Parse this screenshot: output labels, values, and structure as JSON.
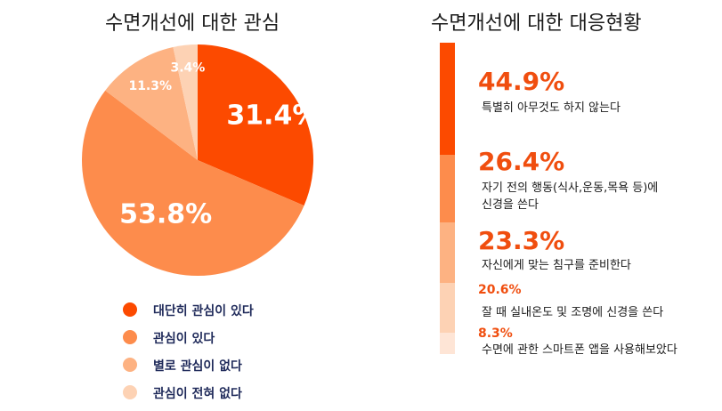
{
  "left_title": "수면개선에 대한 관심",
  "right_title": "수면개선에 대한 대응현황",
  "colors": {
    "c1": "#fc4a00",
    "c2": "#fd8c4c",
    "c3": "#fdb282",
    "c4": "#fdd2b4",
    "c5": "#fee5d6",
    "label_accent": "#f04e0f"
  },
  "chart_data": [
    {
      "type": "pie",
      "title": "수면개선에 대한 관심",
      "start": "12 o'clock",
      "direction": "clockwise",
      "slices": [
        {
          "label": "대단히 관심이 있다",
          "value": 31.4,
          "display": "31.4%",
          "color": "#fc4a00"
        },
        {
          "label": "관심이 있다",
          "value": 53.8,
          "display": "53.8%",
          "color": "#fd8c4c"
        },
        {
          "label": "별로 관심이 없다",
          "value": 11.3,
          "display": "11.3%",
          "color": "#fdb282"
        },
        {
          "label": "관심이 전혀 없다",
          "value": 3.4,
          "display": "3.4%",
          "color": "#fdd2b4"
        }
      ],
      "legend_position": "bottom"
    },
    {
      "type": "bar",
      "title": "수면개선에 대한 대응현황",
      "orientation": "vertical-stacked",
      "items": [
        {
          "label": "특별히 아무것도 하지 않는다",
          "value": 44.9,
          "display": "44.9%",
          "color": "#fc4a00"
        },
        {
          "label": "자기 전의 행동(식사,운동,목욕 등)에\n신경을 쓴다",
          "value": 26.4,
          "display": "26.4%",
          "color": "#fd8c4c"
        },
        {
          "label": "자신에게 맞는 침구를 준비한다",
          "value": 23.3,
          "display": "23.3%",
          "color": "#fdb282"
        },
        {
          "label": "잘 때 실내온도 및 조명에 신경을 쓴다",
          "value": 20.6,
          "display": "20.6%",
          "color": "#fdd2b4"
        },
        {
          "label": "수면에 관한 스마트폰 앱을 사용해보았다",
          "value": 8.3,
          "display": "8.3%",
          "color": "#fee5d6"
        }
      ]
    }
  ]
}
